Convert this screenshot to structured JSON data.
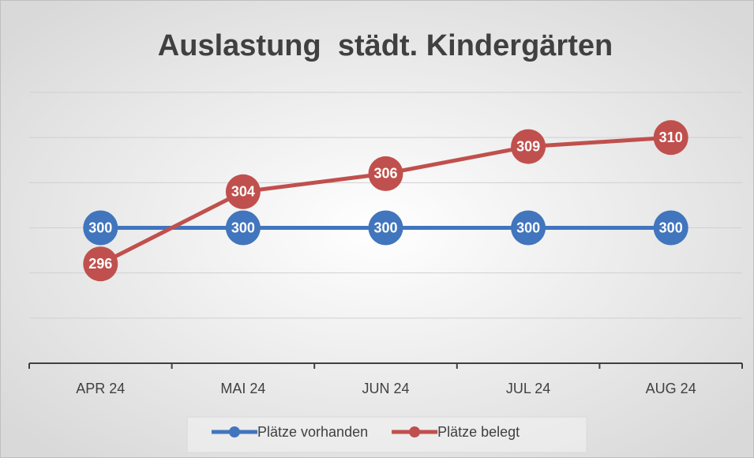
{
  "chart_data": {
    "type": "line",
    "title": "Auslastung  städt. Kindergärten",
    "categories": [
      "APR 24",
      "MAI 24",
      "JUN 24",
      "JUL 24",
      "AUG 24"
    ],
    "series": [
      {
        "name": "Plätze vorhanden",
        "color": "#4175bd",
        "values": [
          300,
          300,
          300,
          300,
          300
        ]
      },
      {
        "name": "Plätze belegt",
        "color": "#c0504d",
        "values": [
          296,
          304,
          306,
          309,
          310
        ]
      }
    ],
    "ylim": [
      285,
      315
    ],
    "yticks": [
      285,
      290,
      295,
      300,
      305,
      310,
      315
    ],
    "grid": true,
    "legend": "bottom"
  }
}
